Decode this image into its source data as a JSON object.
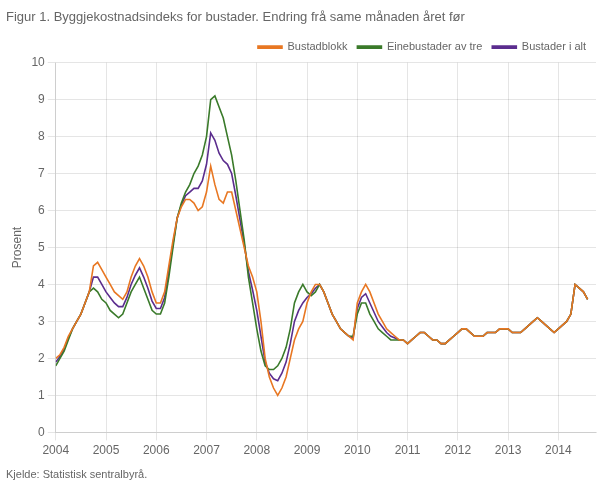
{
  "chart_data": {
    "type": "line",
    "title": "Figur 1. Byggjekostnadsindeks for bustader. Endring frå same månaden året før",
    "y_label": "Prosent",
    "annotations": [
      "Kjelde: Statistisk sentralbyrå."
    ],
    "x": [
      2004,
      2004.0833333333333,
      2004.1666666666667,
      2004.25,
      2004.3333333333333,
      2004.4166666666667,
      2004.5,
      2004.5833333333333,
      2004.6666666666667,
      2004.75,
      2004.8333333333333,
      2004.9166666666667,
      2005,
      2005.0833333333333,
      2005.1666666666667,
      2005.25,
      2005.3333333333333,
      2005.4166666666667,
      2005.5,
      2005.5833333333333,
      2005.6666666666667,
      2005.75,
      2005.8333333333333,
      2005.9166666666667,
      2006,
      2006.0833333333333,
      2006.1666666666667,
      2006.25,
      2006.3333333333333,
      2006.4166666666667,
      2006.5,
      2006.5833333333333,
      2006.6666666666667,
      2006.75,
      2006.8333333333333,
      2006.9166666666667,
      2007,
      2007.0833333333333,
      2007.1666666666667,
      2007.25,
      2007.3333333333333,
      2007.4166666666667,
      2007.5,
      2007.5833333333333,
      2007.6666666666667,
      2007.75,
      2007.8333333333333,
      2007.9166666666667,
      2008,
      2008.0833333333333,
      2008.1666666666667,
      2008.25,
      2008.3333333333333,
      2008.4166666666667,
      2008.5,
      2008.5833333333333,
      2008.6666666666667,
      2008.75,
      2008.8333333333333,
      2008.9166666666667,
      2009,
      2009.0833333333333,
      2009.1666666666667,
      2009.25,
      2009.3333333333333,
      2009.4166666666667,
      2009.5,
      2009.5833333333333,
      2009.6666666666667,
      2009.75,
      2009.8333333333333,
      2009.9166666666667,
      2010,
      2010.0833333333333,
      2010.1666666666667,
      2010.25,
      2010.3333333333333,
      2010.4166666666667,
      2010.5,
      2010.5833333333333,
      2010.6666666666667,
      2010.75,
      2010.8333333333333,
      2010.9166666666667,
      2011,
      2011.0833333333333,
      2011.1666666666667,
      2011.25,
      2011.3333333333333,
      2011.4166666666667,
      2011.5,
      2011.5833333333333,
      2011.6666666666667,
      2011.75,
      2011.8333333333333,
      2011.9166666666667,
      2012,
      2012.0833333333333,
      2012.1666666666667,
      2012.25,
      2012.3333333333333,
      2012.4166666666667,
      2012.5,
      2012.5833333333333,
      2012.6666666666667,
      2012.75,
      2012.8333333333333,
      2012.9166666666667,
      2013,
      2013.0833333333333,
      2013.1666666666667,
      2013.25,
      2013.3333333333333,
      2013.4166666666667,
      2013.5,
      2013.5833333333333,
      2013.6666666666667,
      2013.75,
      2013.8333333333333,
      2013.9166666666667,
      2014,
      2014.0833333333333,
      2014.1666666666667,
      2014.25,
      2014.3333333333333,
      2014.4166666666667,
      2014.5,
      2014.5833333333333
    ],
    "xlim": [
      2004,
      2014.75
    ],
    "xticks": [
      2004,
      2005,
      2006,
      2007,
      2008,
      2009,
      2010,
      2011,
      2012,
      2013,
      2014
    ],
    "ylim": [
      0,
      10
    ],
    "yticks": [
      0,
      1,
      2,
      3,
      4,
      5,
      6,
      7,
      8,
      9,
      10
    ],
    "grid": true,
    "legend": "upper right",
    "series": [
      {
        "name": "Bustadblokk",
        "color": "#E87722",
        "values": [
          2.0,
          2.1,
          2.3,
          2.6,
          2.8,
          3.0,
          3.2,
          3.5,
          3.8,
          4.5,
          4.6,
          4.4,
          4.2,
          4.0,
          3.8,
          3.7,
          3.6,
          3.8,
          4.2,
          4.5,
          4.7,
          4.5,
          4.2,
          3.8,
          3.5,
          3.5,
          3.8,
          4.5,
          5.2,
          5.8,
          6.1,
          6.3,
          6.3,
          6.2,
          6.0,
          6.1,
          6.5,
          7.2,
          6.7,
          6.3,
          6.2,
          6.5,
          6.5,
          6.0,
          5.5,
          5.0,
          4.5,
          4.2,
          3.8,
          3.0,
          2.0,
          1.5,
          1.2,
          1.0,
          1.2,
          1.5,
          2.0,
          2.5,
          2.8,
          3.0,
          3.5,
          3.8,
          4.0,
          4.0,
          3.8,
          3.5,
          3.2,
          3.0,
          2.8,
          2.7,
          2.6,
          2.5,
          3.5,
          3.8,
          4.0,
          3.8,
          3.5,
          3.2,
          3.0,
          2.8,
          2.7,
          2.6,
          2.5,
          2.5,
          2.4,
          2.5,
          2.6,
          2.7,
          2.7,
          2.6,
          2.5,
          2.5,
          2.4,
          2.4,
          2.5,
          2.6,
          2.7,
          2.8,
          2.8,
          2.7,
          2.6,
          2.6,
          2.6,
          2.7,
          2.7,
          2.7,
          2.8,
          2.8,
          2.8,
          2.7,
          2.7,
          2.7,
          2.8,
          2.9,
          3.0,
          3.1,
          3.0,
          2.9,
          2.8,
          2.7,
          2.8,
          2.9,
          3.0,
          3.2,
          4.0,
          3.9,
          3.8,
          3.6
        ]
      },
      {
        "name": "Einebustader av tre",
        "color": "#3A7A2A",
        "values": [
          1.8,
          2.0,
          2.2,
          2.5,
          2.8,
          3.0,
          3.2,
          3.5,
          3.8,
          3.9,
          3.8,
          3.6,
          3.5,
          3.3,
          3.2,
          3.1,
          3.2,
          3.5,
          3.8,
          4.0,
          4.2,
          3.9,
          3.6,
          3.3,
          3.2,
          3.2,
          3.5,
          4.2,
          5.0,
          5.8,
          6.2,
          6.5,
          6.7,
          7.0,
          7.2,
          7.5,
          8.0,
          9.0,
          9.1,
          8.8,
          8.5,
          8.0,
          7.5,
          6.8,
          6.0,
          5.2,
          4.2,
          3.5,
          2.8,
          2.2,
          1.8,
          1.7,
          1.7,
          1.8,
          2.0,
          2.3,
          2.8,
          3.5,
          3.8,
          4.0,
          3.8,
          3.7,
          3.8,
          4.0,
          3.8,
          3.5,
          3.2,
          3.0,
          2.8,
          2.7,
          2.6,
          2.6,
          3.2,
          3.5,
          3.5,
          3.2,
          3.0,
          2.8,
          2.7,
          2.6,
          2.5,
          2.5,
          2.5,
          2.5,
          2.4,
          2.5,
          2.6,
          2.7,
          2.7,
          2.6,
          2.5,
          2.5,
          2.4,
          2.4,
          2.5,
          2.6,
          2.7,
          2.8,
          2.8,
          2.7,
          2.6,
          2.6,
          2.6,
          2.7,
          2.7,
          2.7,
          2.8,
          2.8,
          2.8,
          2.7,
          2.7,
          2.7,
          2.8,
          2.9,
          3.0,
          3.1,
          3.0,
          2.9,
          2.8,
          2.7,
          2.8,
          2.9,
          3.0,
          3.2,
          4.0,
          3.9,
          3.8,
          3.6
        ]
      },
      {
        "name": "Bustader i alt",
        "color": "#5B2D8E",
        "values": [
          1.9,
          2.05,
          2.25,
          2.55,
          2.8,
          3.0,
          3.2,
          3.5,
          3.8,
          4.2,
          4.2,
          4.0,
          3.8,
          3.65,
          3.5,
          3.4,
          3.4,
          3.65,
          4.0,
          4.25,
          4.45,
          4.2,
          3.9,
          3.55,
          3.35,
          3.35,
          3.65,
          4.35,
          5.1,
          5.8,
          6.15,
          6.4,
          6.5,
          6.6,
          6.6,
          6.8,
          7.25,
          8.1,
          7.9,
          7.55,
          7.35,
          7.25,
          7.0,
          6.4,
          5.75,
          5.1,
          4.35,
          3.85,
          3.3,
          2.6,
          1.9,
          1.6,
          1.45,
          1.4,
          1.6,
          1.9,
          2.4,
          3.0,
          3.3,
          3.5,
          3.65,
          3.75,
          3.9,
          4.0,
          3.8,
          3.5,
          3.2,
          3.0,
          2.8,
          2.7,
          2.6,
          2.55,
          3.35,
          3.65,
          3.75,
          3.5,
          3.25,
          3.0,
          2.85,
          2.7,
          2.6,
          2.55,
          2.5,
          2.5,
          2.4,
          2.5,
          2.6,
          2.7,
          2.7,
          2.6,
          2.5,
          2.5,
          2.4,
          2.4,
          2.5,
          2.6,
          2.7,
          2.8,
          2.8,
          2.7,
          2.6,
          2.6,
          2.6,
          2.7,
          2.7,
          2.7,
          2.8,
          2.8,
          2.8,
          2.7,
          2.7,
          2.7,
          2.8,
          2.9,
          3.0,
          3.1,
          3.0,
          2.9,
          2.8,
          2.7,
          2.8,
          2.9,
          3.0,
          3.2,
          4.0,
          3.9,
          3.8,
          3.6
        ]
      }
    ]
  }
}
